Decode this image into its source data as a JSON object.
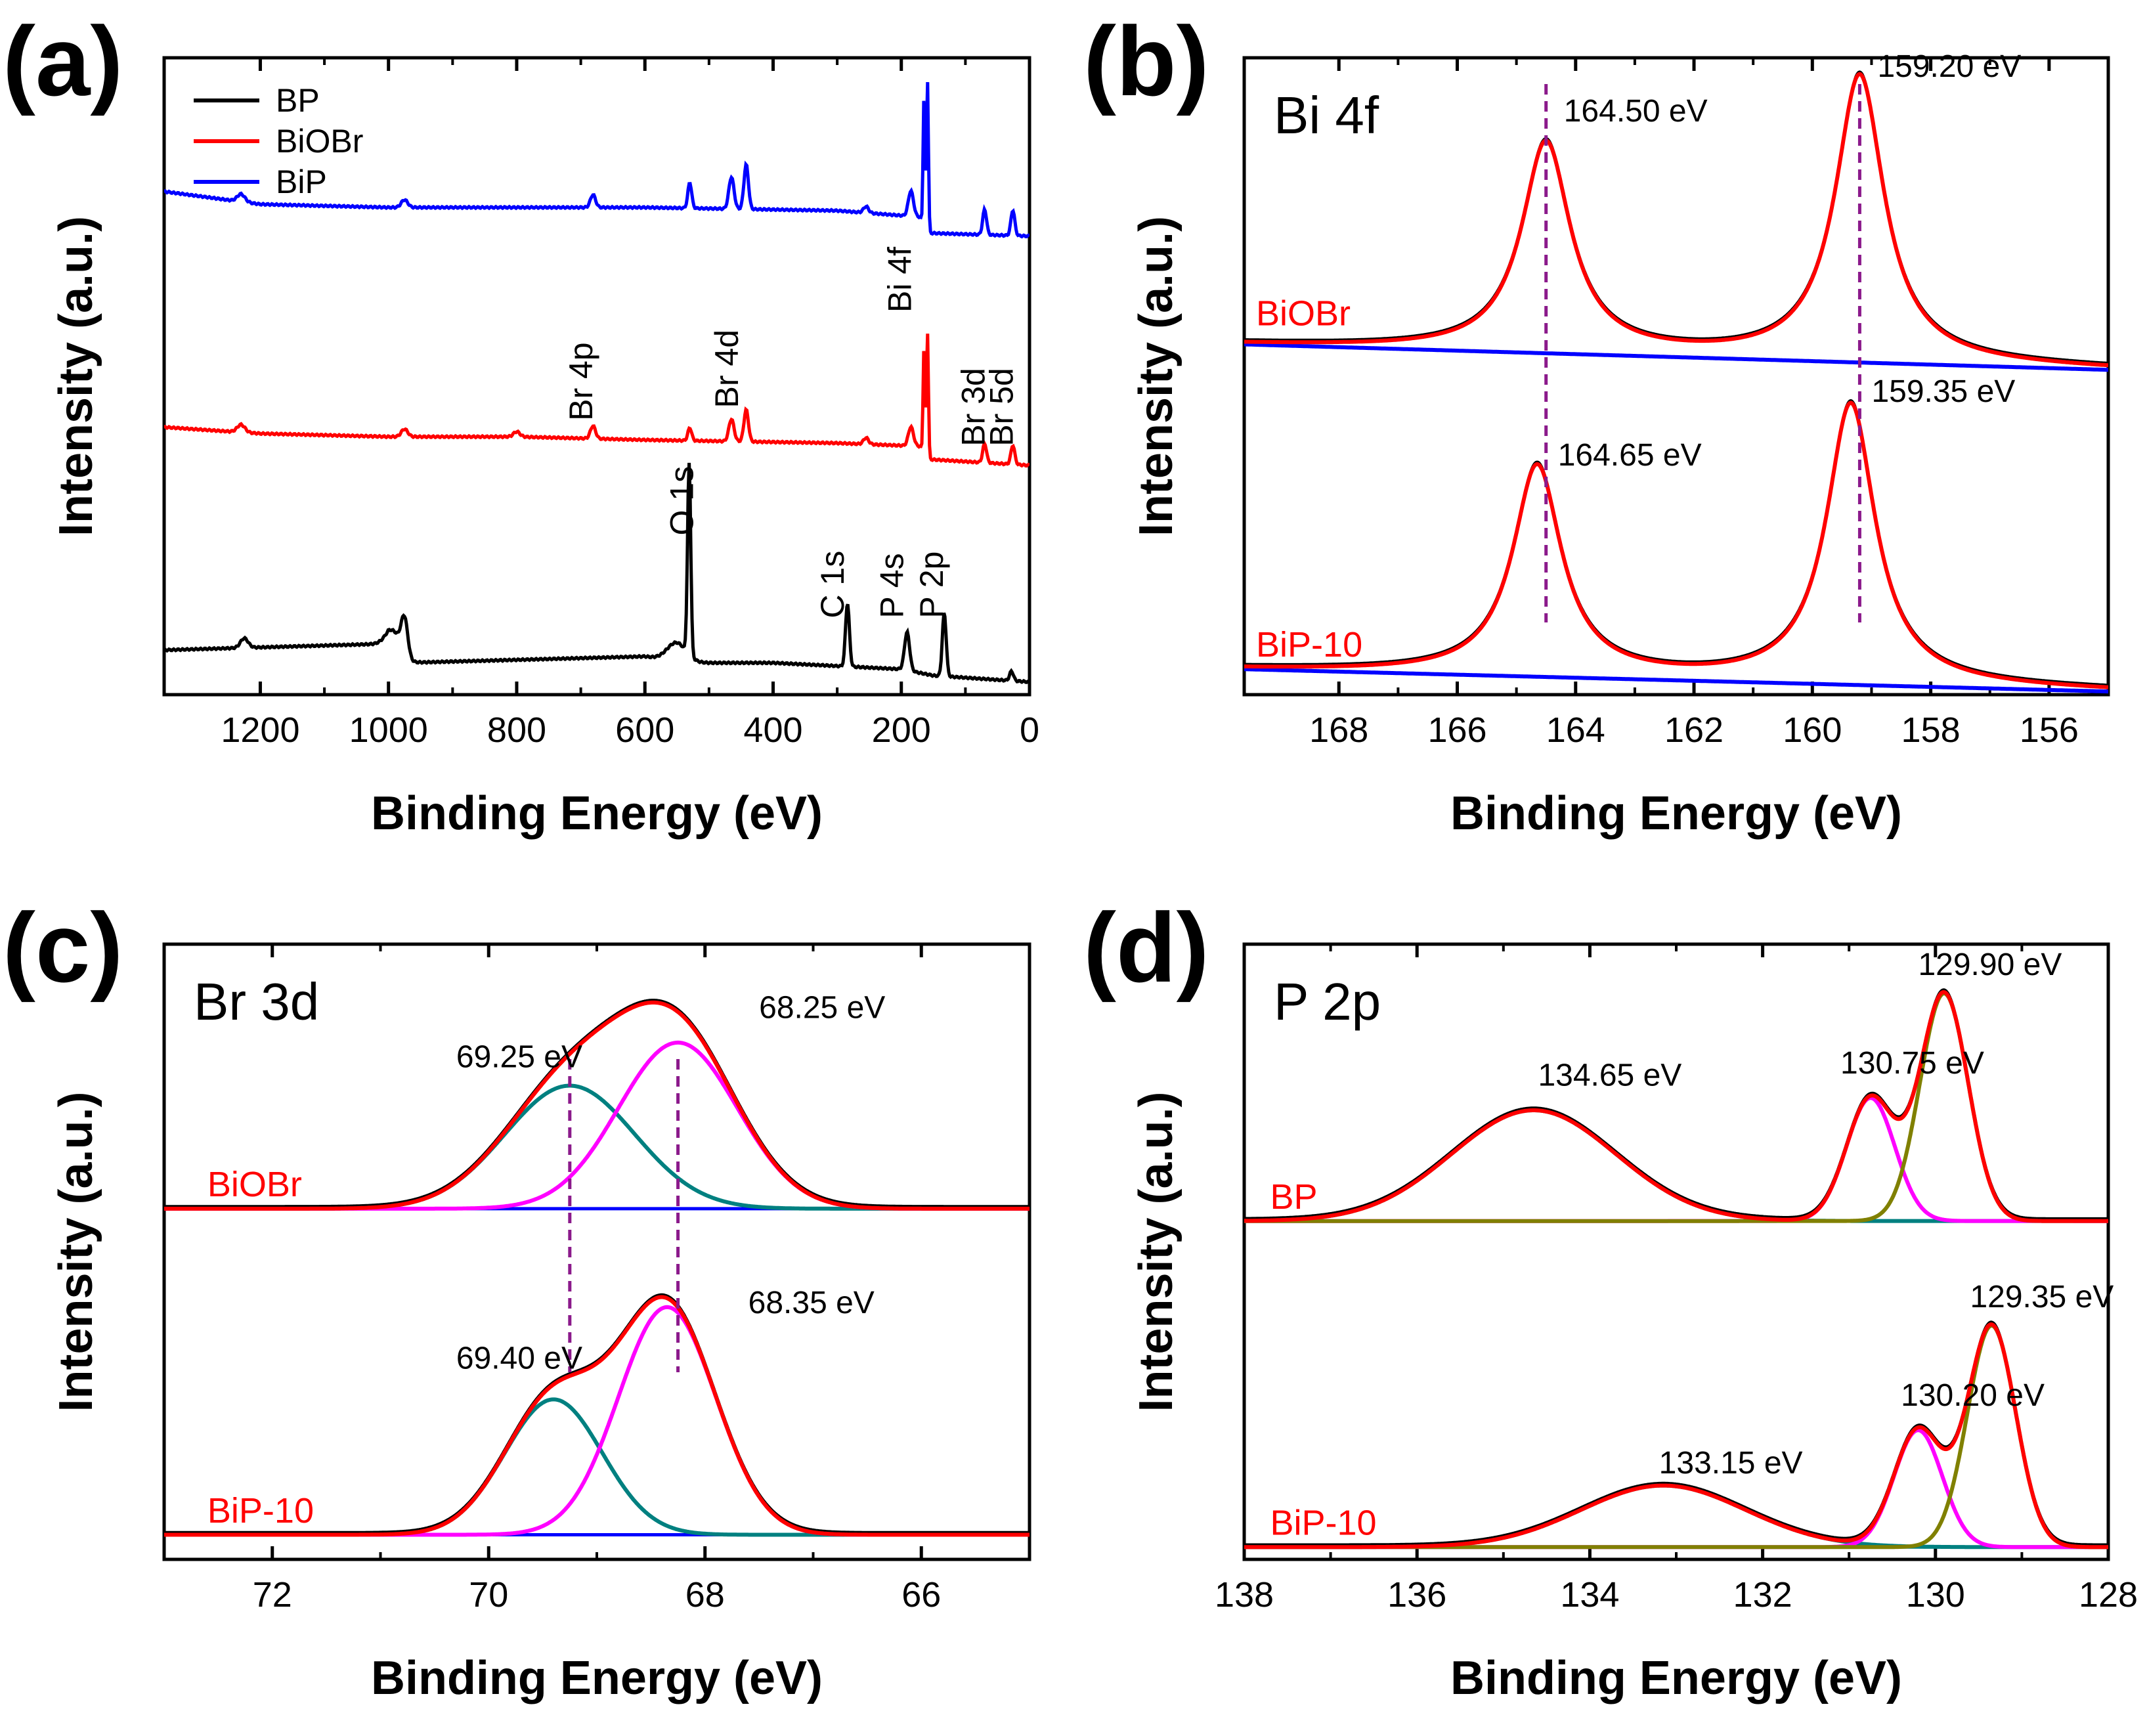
{
  "chart_data": [
    {
      "id": "a",
      "type": "line",
      "panel_label": "(a)",
      "title": "",
      "xlabel": "Binding Energy (eV)",
      "ylabel": "Intensity (a.u.)",
      "xlim": [
        1350,
        0
      ],
      "ylim": [
        0,
        100
      ],
      "xticks": [
        "1200",
        "1000",
        "800",
        "600",
        "400",
        "200",
        "0"
      ],
      "xtick_values": [
        1200,
        1000,
        800,
        600,
        400,
        200,
        0
      ],
      "legend": [
        {
          "name": "BP",
          "color": "#000000"
        },
        {
          "name": "BiOBr",
          "color": "#ff0000"
        },
        {
          "name": "BiP",
          "color": "#0000ff"
        }
      ],
      "series": [
        {
          "name": "BP",
          "color": "#000000",
          "baseline": [
            [
              1350,
              7
            ],
            [
              1000,
              8
            ],
            [
              975,
              5
            ],
            [
              600,
              6
            ],
            [
              540,
              5
            ],
            [
              400,
              5
            ],
            [
              200,
              4
            ],
            [
              150,
              3
            ],
            [
              0,
              2
            ]
          ],
          "peaks": [
            [
              1225,
              1.5,
              6
            ],
            [
              990,
              3,
              12
            ],
            [
              975,
              6,
              5
            ],
            [
              550,
              3,
              15
            ],
            [
              531,
              30,
              2.5
            ],
            [
              284,
              10,
              3
            ],
            [
              191,
              6,
              4
            ],
            [
              133,
              10,
              3
            ],
            [
              28,
              1.5,
              3
            ]
          ]
        },
        {
          "name": "BiOBr",
          "color": "#ff0000",
          "baseline": [
            [
              1350,
              42
            ],
            [
              1200,
              41
            ],
            [
              1000,
              40.5
            ],
            [
              800,
              40.5
            ],
            [
              600,
              40
            ],
            [
              300,
              39.5
            ],
            [
              170,
              39
            ],
            [
              165,
              37
            ],
            [
              0,
              36
            ]
          ],
          "peaks": [
            [
              1230,
              1.2,
              6
            ],
            [
              975,
              1.2,
              5
            ],
            [
              800,
              0.8,
              5
            ],
            [
              681,
              2,
              4
            ],
            [
              530,
              2,
              3
            ],
            [
              465,
              3.5,
              4
            ],
            [
              442,
              5,
              3.5
            ],
            [
              255,
              1,
              4
            ],
            [
              185,
              3,
              4
            ],
            [
              164.5,
              18,
              1.5
            ],
            [
              159.2,
              20,
              1.5
            ],
            [
              70,
              3,
              3
            ],
            [
              26,
              3,
              3
            ]
          ]
        },
        {
          "name": "BiP",
          "color": "#0000ff",
          "baseline": [
            [
              1350,
              79
            ],
            [
              1200,
              77
            ],
            [
              1000,
              76.5
            ],
            [
              800,
              76.5
            ],
            [
              600,
              76.5
            ],
            [
              300,
              76
            ],
            [
              170,
              75
            ],
            [
              165,
              72.5
            ],
            [
              0,
              72
            ]
          ],
          "peaks": [
            [
              1230,
              1.2,
              6
            ],
            [
              975,
              1.2,
              5
            ],
            [
              681,
              2,
              4
            ],
            [
              530,
              4,
              3
            ],
            [
              465,
              5,
              4
            ],
            [
              442,
              7,
              3.5
            ],
            [
              255,
              1,
              4
            ],
            [
              185,
              4,
              4
            ],
            [
              164.5,
              22,
              1.5
            ],
            [
              159.2,
              24,
              1.5
            ],
            [
              70,
              4,
              3
            ],
            [
              26,
              4,
              3
            ]
          ]
        }
      ],
      "annotations": [
        {
          "text": "Br 4p",
          "x": 682,
          "y": 43,
          "rotated": true
        },
        {
          "text": "Br 4d",
          "x": 455,
          "y": 45,
          "rotated": true
        },
        {
          "text": "Bi 4f",
          "x": 185,
          "y": 60,
          "rotated": true
        },
        {
          "text": "Br 3d",
          "x": 70,
          "y": 39,
          "rotated": true
        },
        {
          "text": "Br 5d",
          "x": 26,
          "y": 39,
          "rotated": true
        },
        {
          "text": "O 1s",
          "x": 525,
          "y": 25,
          "rotated": true
        },
        {
          "text": "C 1s",
          "x": 290,
          "y": 12,
          "rotated": true
        },
        {
          "text": "P 4s",
          "x": 197,
          "y": 12,
          "rotated": true
        },
        {
          "text": "P 2p",
          "x": 135,
          "y": 12,
          "rotated": true
        }
      ]
    },
    {
      "id": "b",
      "type": "line",
      "panel_label": "(b)",
      "title": "Bi 4f",
      "xlabel": "Binding Energy (eV)",
      "ylabel": "Intensity (a.u.)",
      "xlim": [
        169.6,
        155
      ],
      "ylim": [
        0,
        100
      ],
      "xticks": [
        "168",
        "166",
        "164",
        "162",
        "160",
        "158",
        "156"
      ],
      "xtick_values": [
        168,
        166,
        164,
        162,
        160,
        158,
        156
      ],
      "series": [
        {
          "name": "BiOBr",
          "label_color": "#ff0000",
          "fit_color": "#ff0000",
          "background_color": "#0000ff",
          "data_color": "#000000",
          "background": [
            [
              169.6,
              55
            ],
            [
              155,
              51
            ]
          ],
          "peaks": [
            [
              164.5,
              33,
              0.5
            ],
            [
              159.2,
              45,
              0.5
            ]
          ],
          "shape": "lorentz"
        },
        {
          "name": "BiP-10",
          "label_color": "#ff0000",
          "fit_color": "#ff0000",
          "background_color": "#0000ff",
          "data_color": "#000000",
          "background": [
            [
              169.6,
              4
            ],
            [
              155,
              0.5
            ]
          ],
          "peaks": [
            [
              164.65,
              33,
              0.5
            ],
            [
              159.35,
              44,
              0.5
            ]
          ],
          "shape": "lorentz"
        }
      ],
      "annotations": [
        {
          "text": "164.50 eV",
          "x": 164.2,
          "y": 90
        },
        {
          "text": "159.20 eV",
          "x": 158.9,
          "y": 97
        },
        {
          "text": "164.65 eV",
          "x": 164.3,
          "y": 36
        },
        {
          "text": "159.35 eV",
          "x": 159.0,
          "y": 46
        },
        {
          "text": "BiOBr",
          "x": 169.4,
          "y": 58,
          "color": "#ff0000"
        },
        {
          "text": "BiP-10",
          "x": 169.4,
          "y": 6,
          "color": "#ff0000"
        }
      ],
      "vlines": [
        164.5,
        159.2
      ]
    },
    {
      "id": "c",
      "type": "line",
      "panel_label": "(c)",
      "title": "Br 3d",
      "xlabel": "Binding Energy (eV)",
      "ylabel": "Intensity (a.u.)",
      "xlim": [
        73,
        65
      ],
      "ylim": [
        0,
        100
      ],
      "xticks": [
        "72",
        "70",
        "68",
        "66"
      ],
      "xtick_values": [
        72,
        70,
        68,
        66
      ],
      "series": [
        {
          "name": "BiOBr",
          "label_color": "#ff0000",
          "baseline": 57,
          "components": [
            {
              "center": 69.25,
              "height": 20,
              "sigma": 0.6,
              "color": "#008080"
            },
            {
              "center": 68.25,
              "height": 27,
              "sigma": 0.55,
              "color": "#ff00ff"
            }
          ],
          "envelope_color": "#ff0000",
          "background_color": "#0000ff"
        },
        {
          "name": "BiP-10",
          "label_color": "#ff0000",
          "baseline": 4,
          "components": [
            {
              "center": 69.4,
              "height": 22,
              "sigma": 0.45,
              "color": "#008080"
            },
            {
              "center": 68.35,
              "height": 37,
              "sigma": 0.45,
              "color": "#ff00ff"
            }
          ],
          "envelope_color": "#ff0000",
          "background_color": "#0000ff"
        }
      ],
      "annotations": [
        {
          "text": "69.25 eV",
          "x": 70.3,
          "y": 80
        },
        {
          "text": "68.25 eV",
          "x": 67.5,
          "y": 88
        },
        {
          "text": "69.40 eV",
          "x": 70.3,
          "y": 31
        },
        {
          "text": "68.35 eV",
          "x": 67.6,
          "y": 40
        },
        {
          "text": "BiOBr",
          "x": 72.6,
          "y": 59,
          "color": "#ff0000"
        },
        {
          "text": "BiP-10",
          "x": 72.6,
          "y": 6,
          "color": "#ff0000"
        }
      ],
      "vlines": [
        69.25,
        68.25
      ]
    },
    {
      "id": "d",
      "type": "line",
      "panel_label": "(d)",
      "title": "P 2p",
      "xlabel": "Binding Energy (eV)",
      "ylabel": "Intensity (a.u.)",
      "xlim": [
        138,
        128
      ],
      "ylim": [
        0,
        100
      ],
      "xticks": [
        "138",
        "136",
        "134",
        "132",
        "130",
        "128"
      ],
      "xtick_values": [
        138,
        136,
        134,
        132,
        130,
        128
      ],
      "series": [
        {
          "name": "BP",
          "label_color": "#ff0000",
          "baseline": 55,
          "components": [
            {
              "center": 134.65,
              "height": 18,
              "sigma": 0.95,
              "color": "#008080"
            },
            {
              "center": 130.75,
              "height": 20,
              "sigma": 0.28,
              "color": "#ff00ff"
            },
            {
              "center": 129.9,
              "height": 37,
              "sigma": 0.28,
              "color": "#808000"
            }
          ],
          "envelope_color": "#ff0000",
          "background_color": "#008080"
        },
        {
          "name": "BiP-10",
          "label_color": "#ff0000",
          "baseline": 2,
          "components": [
            {
              "center": 133.15,
              "height": 10,
              "sigma": 0.95,
              "color": "#008080"
            },
            {
              "center": 130.2,
              "height": 19,
              "sigma": 0.28,
              "color": "#ff00ff"
            },
            {
              "center": 129.35,
              "height": 36,
              "sigma": 0.28,
              "color": "#808000"
            }
          ],
          "envelope_color": "#ff0000",
          "background_color": "#008080"
        }
      ],
      "annotations": [
        {
          "text": "134.65 eV",
          "x": 134.6,
          "y": 77
        },
        {
          "text": "130.75 eV",
          "x": 131.1,
          "y": 79
        },
        {
          "text": "129.90 eV",
          "x": 130.2,
          "y": 95
        },
        {
          "text": "133.15 eV",
          "x": 133.2,
          "y": 14
        },
        {
          "text": "130.20 eV",
          "x": 130.4,
          "y": 25
        },
        {
          "text": "129.35 eV",
          "x": 129.6,
          "y": 41
        },
        {
          "text": "BP",
          "x": 137.7,
          "y": 57,
          "color": "#ff0000"
        },
        {
          "text": "BiP-10",
          "x": 137.7,
          "y": 4,
          "color": "#ff0000"
        }
      ],
      "vlines": []
    }
  ]
}
